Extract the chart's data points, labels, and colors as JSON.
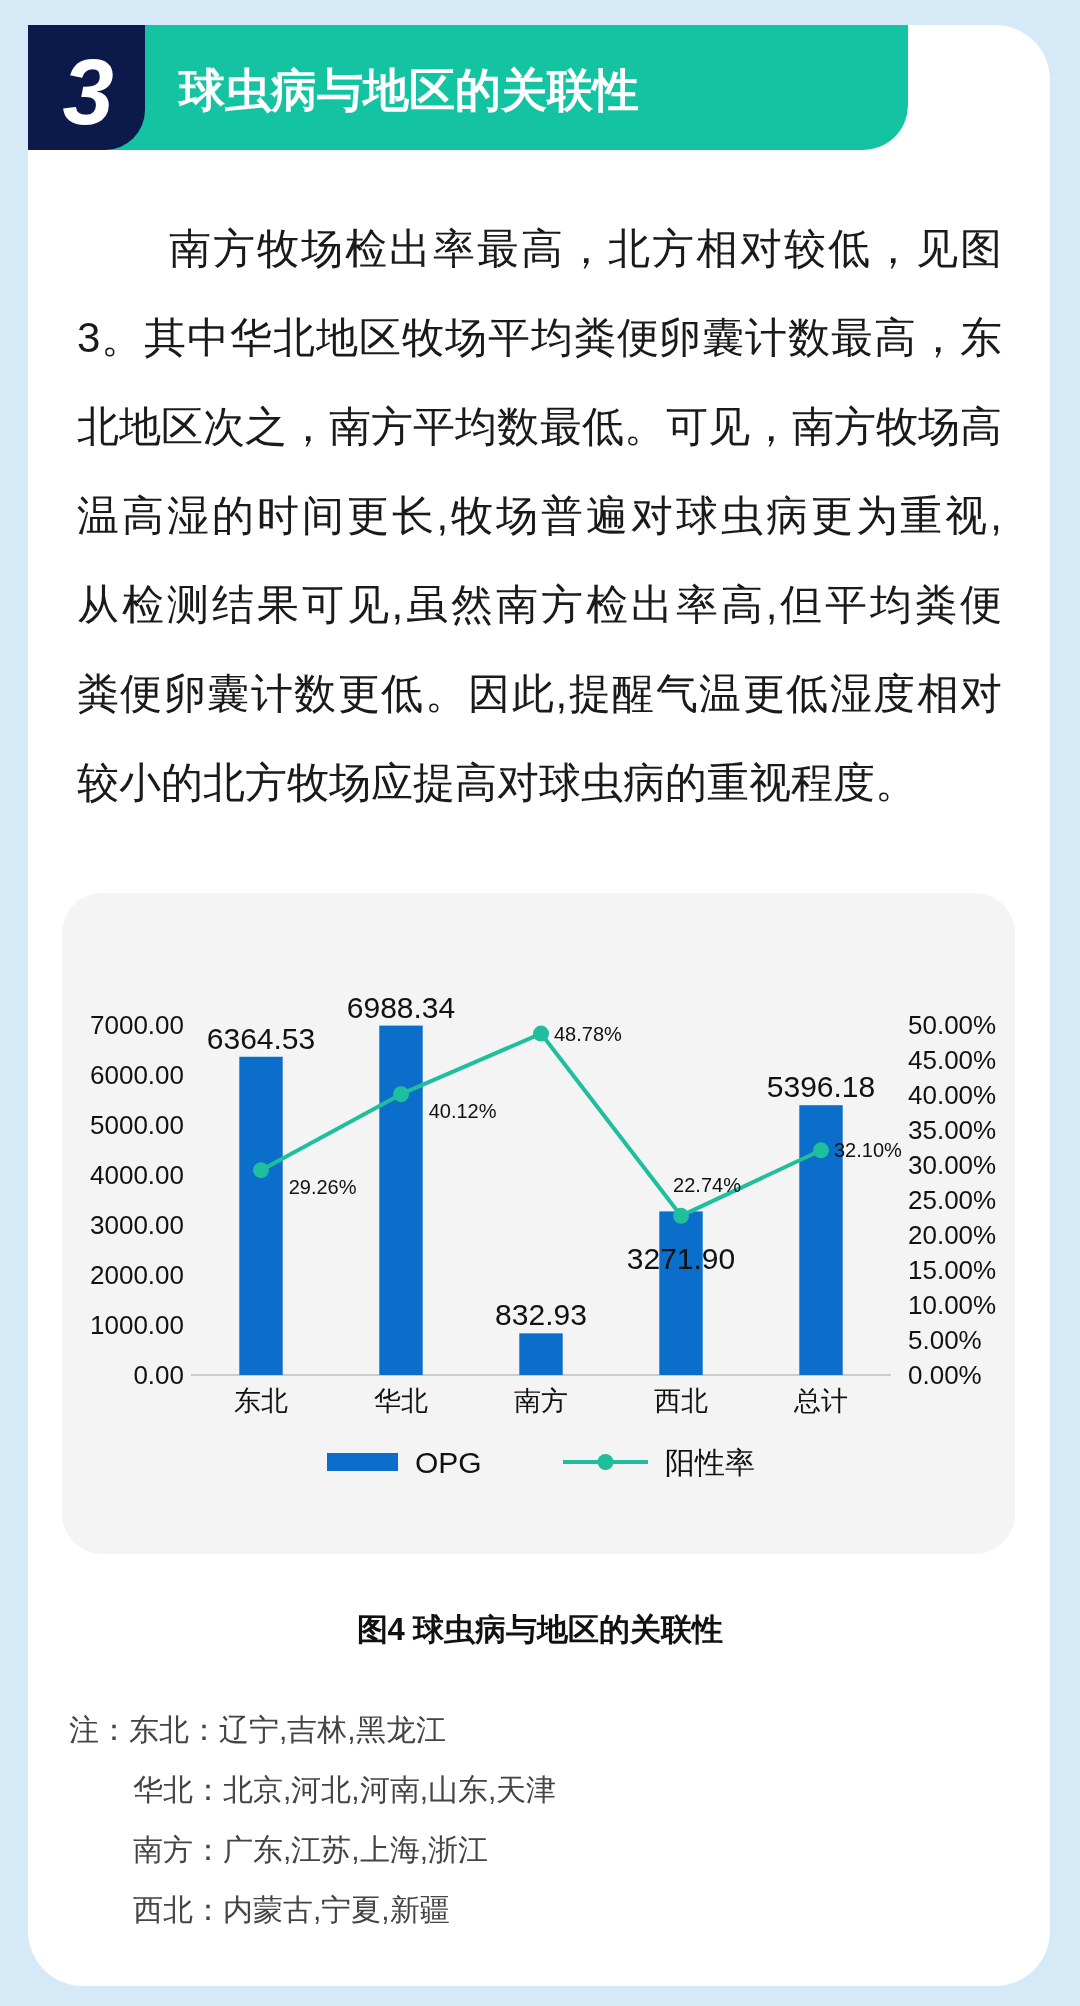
{
  "chart_data": {
    "type": "bar",
    "title": "球虫病与地区的关联性",
    "categories": [
      "东北",
      "华北",
      "南方",
      "西北",
      "总计"
    ],
    "series": [
      {
        "name": "OPG",
        "color": "#0b6ecb",
        "values": [
          6364.53,
          6988.34,
          832.93,
          3271.9,
          5396.18
        ],
        "value_labels": [
          "6364.53",
          "6988.34",
          "832.93",
          "3271.90",
          "5396.18"
        ]
      },
      {
        "name": "阳性率",
        "type": "line",
        "axis": "y2",
        "color": "#1fbf9e",
        "values": [
          29.26,
          40.12,
          48.78,
          22.74,
          32.1
        ],
        "value_labels": [
          "29.26%",
          "40.12%",
          "48.78%",
          "22.74%",
          "32.10%"
        ]
      }
    ],
    "ylim": [
      0,
      7000
    ],
    "yticks": [
      {
        "value": 0,
        "label": "0.00"
      },
      {
        "value": 1000,
        "label": "1000.00"
      },
      {
        "value": 2000,
        "label": "2000.00"
      },
      {
        "value": 3000,
        "label": "3000.00"
      },
      {
        "value": 4000,
        "label": "4000.00"
      },
      {
        "value": 5000,
        "label": "5000.00"
      },
      {
        "value": 6000,
        "label": "6000.00"
      },
      {
        "value": 7000,
        "label": "7000.00"
      }
    ],
    "y2lim": [
      0,
      50
    ],
    "y2ticks": [
      {
        "value": 0,
        "label": "0.00%"
      },
      {
        "value": 5,
        "label": "5.00%"
      },
      {
        "value": 10,
        "label": "10.00%"
      },
      {
        "value": 15,
        "label": "15.00%"
      },
      {
        "value": 20,
        "label": "20.00%"
      },
      {
        "value": 25,
        "label": "25.00%"
      },
      {
        "value": 30,
        "label": "30.00%"
      },
      {
        "value": 35,
        "label": "35.00%"
      },
      {
        "value": 40,
        "label": "40.00%"
      },
      {
        "value": 45,
        "label": "45.00%"
      },
      {
        "value": 50,
        "label": "50.00%"
      }
    ],
    "legend": "bottom",
    "marker": "circle",
    "line_style": "solid",
    "annotations": [
      "3",
      "南方牧场检出率最高，北方相对较低，见图3。其中华北地区牧场平均粪便卵囊计数最高，东北地区次之，南方平均数最低。可见，南方牧场高温高湿的时间更长,牧场普遍对球虫病更为重视,从检测结果可见,虽然南方检出率高,但平均粪便粪便卵囊计数更低。因此,提醒气温更低湿度相对较小的北方牧场应提高对球虫病的重视程度。",
      "图4 球虫病与地区的关联性",
      "注：东北：辽宁,吉林,黑龙江",
      "华北：北京,河北,河南,山东,天津",
      "南方：广东,江苏,上海,浙江",
      "西北：内蒙古,宁夏,新疆"
    ]
  }
}
